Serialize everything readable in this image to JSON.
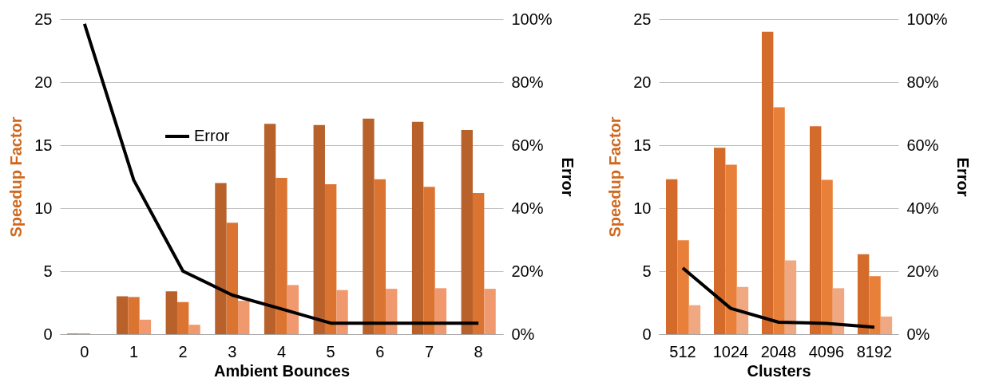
{
  "chart_data": [
    {
      "type": "bar",
      "categories": [
        "0",
        "1",
        "2",
        "3",
        "4",
        "5",
        "6",
        "7",
        "8"
      ],
      "xlabel": "Ambient Bounces",
      "ylabel": "Speedup Factor",
      "y2label": "Error",
      "ylim": [
        0,
        25
      ],
      "yticks": [
        0,
        5,
        10,
        15,
        20,
        25
      ],
      "y2lim": [
        0,
        100
      ],
      "y2ticks": [
        {
          "value": 0,
          "label": "0%"
        },
        {
          "value": 20,
          "label": "20%"
        },
        {
          "value": 40,
          "label": "40%"
        },
        {
          "value": 60,
          "label": "60%"
        },
        {
          "value": 80,
          "label": "80%"
        },
        {
          "value": 100,
          "label": "100%"
        }
      ],
      "grid": "y",
      "legend": "top left",
      "series": [
        {
          "color": "#b8612a",
          "values": [
            0.05,
            3.0,
            3.4,
            12.0,
            16.7,
            16.6,
            17.1,
            16.85,
            16.2
          ]
        },
        {
          "color": "#dc7431",
          "values": [
            0.05,
            2.95,
            2.55,
            8.85,
            12.4,
            11.9,
            12.3,
            11.7,
            11.2
          ]
        },
        {
          "color": "#f0996f",
          "values": [
            0,
            1.15,
            0.75,
            2.65,
            3.9,
            3.5,
            3.6,
            3.65,
            3.6
          ]
        },
        {
          "name": "Error",
          "type": "line",
          "axis": "y2",
          "color": "#000000",
          "values": [
            98.5,
            48.9,
            20,
            12.4,
            8,
            3.5,
            3.5,
            3.5,
            3.5
          ]
        }
      ]
    },
    {
      "type": "bar",
      "categories": [
        "512",
        "1024",
        "2048",
        "4096",
        "8192"
      ],
      "xlabel": "Clusters",
      "ylabel": "Speedup Factor",
      "y2label": "Error",
      "ylim": [
        0,
        25
      ],
      "yticks": [
        0,
        5,
        10,
        15,
        20,
        25
      ],
      "y2lim": [
        0,
        100
      ],
      "y2ticks": [
        {
          "value": 0,
          "label": "0%"
        },
        {
          "value": 20,
          "label": "20%"
        },
        {
          "value": 40,
          "label": "40%"
        },
        {
          "value": 60,
          "label": "60%"
        },
        {
          "value": 80,
          "label": "80%"
        },
        {
          "value": 100,
          "label": "100%"
        }
      ],
      "grid": "y",
      "series": [
        {
          "color": "#d46b2a",
          "values": [
            12.3,
            14.8,
            24.0,
            16.5,
            6.35
          ]
        },
        {
          "color": "#e8803a",
          "values": [
            7.45,
            13.45,
            18.0,
            12.25,
            4.6
          ]
        },
        {
          "color": "#f0a882",
          "values": [
            2.3,
            3.75,
            5.85,
            3.65,
            1.4
          ]
        },
        {
          "type": "line",
          "axis": "y2",
          "color": "#000000",
          "values": [
            21,
            8.2,
            3.8,
            3.4,
            2.2
          ]
        }
      ]
    }
  ]
}
